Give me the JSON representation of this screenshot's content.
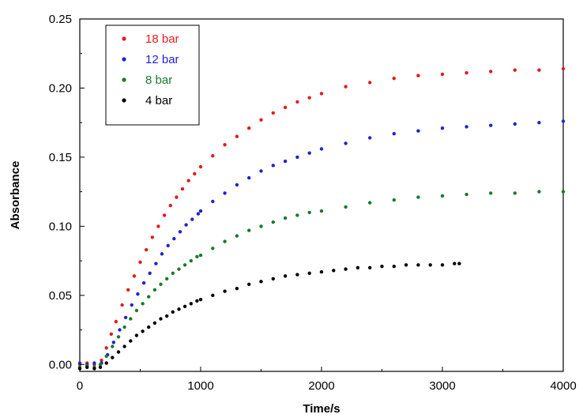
{
  "chart_data": {
    "type": "scatter",
    "title": "",
    "xlabel": "Time/s",
    "ylabel": "Absorbance",
    "xlim": [
      0,
      4000
    ],
    "ylim": [
      -0.005,
      0.25
    ],
    "x_ticks": [
      0,
      1000,
      2000,
      3000,
      4000
    ],
    "x_tick_labels": [
      "0",
      "1000",
      "2000",
      "3000",
      "4000"
    ],
    "y_ticks": [
      0.0,
      0.05,
      0.1,
      0.15,
      0.2,
      0.25
    ],
    "y_tick_labels": [
      "0.00",
      "0.05",
      "0.10",
      "0.15",
      "0.20",
      "0.25"
    ],
    "grid": false,
    "legend_position": "top-left",
    "series": [
      {
        "name": "18 bar",
        "color": "#e41a1c",
        "points": [
          [
            0,
            0.0
          ],
          [
            60,
            0.001
          ],
          [
            120,
            0.0
          ],
          [
            180,
            0.003
          ],
          [
            220,
            0.012
          ],
          [
            260,
            0.022
          ],
          [
            300,
            0.031
          ],
          [
            350,
            0.043
          ],
          [
            400,
            0.054
          ],
          [
            450,
            0.064
          ],
          [
            500,
            0.074
          ],
          [
            550,
            0.083
          ],
          [
            600,
            0.092
          ],
          [
            650,
            0.1
          ],
          [
            700,
            0.108
          ],
          [
            750,
            0.115
          ],
          [
            800,
            0.121
          ],
          [
            850,
            0.127
          ],
          [
            900,
            0.133
          ],
          [
            950,
            0.138
          ],
          [
            1000,
            0.143
          ],
          [
            1100,
            0.151
          ],
          [
            1200,
            0.159
          ],
          [
            1300,
            0.165
          ],
          [
            1400,
            0.171
          ],
          [
            1500,
            0.177
          ],
          [
            1600,
            0.182
          ],
          [
            1700,
            0.186
          ],
          [
            1800,
            0.19
          ],
          [
            1900,
            0.193
          ],
          [
            2000,
            0.196
          ],
          [
            2200,
            0.201
          ],
          [
            2400,
            0.204
          ],
          [
            2600,
            0.207
          ],
          [
            2800,
            0.209
          ],
          [
            3000,
            0.21
          ],
          [
            3200,
            0.211
          ],
          [
            3400,
            0.212
          ],
          [
            3600,
            0.213
          ],
          [
            3800,
            0.213
          ],
          [
            4000,
            0.214
          ]
        ]
      },
      {
        "name": "12 bar",
        "color": "#1f22d2",
        "points": [
          [
            0,
            0.001
          ],
          [
            60,
            0.0
          ],
          [
            120,
            0.001
          ],
          [
            180,
            0.001
          ],
          [
            230,
            0.007
          ],
          [
            280,
            0.016
          ],
          [
            330,
            0.025
          ],
          [
            380,
            0.034
          ],
          [
            430,
            0.043
          ],
          [
            480,
            0.051
          ],
          [
            530,
            0.059
          ],
          [
            580,
            0.066
          ],
          [
            630,
            0.073
          ],
          [
            680,
            0.08
          ],
          [
            730,
            0.086
          ],
          [
            780,
            0.091
          ],
          [
            830,
            0.096
          ],
          [
            880,
            0.101
          ],
          [
            930,
            0.105
          ],
          [
            980,
            0.109
          ],
          [
            1000,
            0.111
          ],
          [
            1100,
            0.118
          ],
          [
            1200,
            0.124
          ],
          [
            1300,
            0.13
          ],
          [
            1400,
            0.135
          ],
          [
            1500,
            0.14
          ],
          [
            1600,
            0.144
          ],
          [
            1700,
            0.147
          ],
          [
            1800,
            0.15
          ],
          [
            1900,
            0.153
          ],
          [
            2000,
            0.156
          ],
          [
            2200,
            0.16
          ],
          [
            2400,
            0.164
          ],
          [
            2600,
            0.167
          ],
          [
            2800,
            0.169
          ],
          [
            3000,
            0.171
          ],
          [
            3200,
            0.172
          ],
          [
            3400,
            0.173
          ],
          [
            3600,
            0.174
          ],
          [
            3800,
            0.175
          ],
          [
            4000,
            0.176
          ]
        ]
      },
      {
        "name": "8 bar",
        "color": "#1b7a2a",
        "points": [
          [
            0,
            -0.002
          ],
          [
            60,
            -0.001
          ],
          [
            120,
            -0.002
          ],
          [
            170,
            0.0
          ],
          [
            220,
            0.006
          ],
          [
            270,
            0.013
          ],
          [
            320,
            0.02
          ],
          [
            370,
            0.027
          ],
          [
            420,
            0.033
          ],
          [
            470,
            0.039
          ],
          [
            520,
            0.044
          ],
          [
            570,
            0.049
          ],
          [
            620,
            0.054
          ],
          [
            670,
            0.058
          ],
          [
            720,
            0.062
          ],
          [
            770,
            0.066
          ],
          [
            820,
            0.069
          ],
          [
            870,
            0.072
          ],
          [
            920,
            0.075
          ],
          [
            970,
            0.078
          ],
          [
            1000,
            0.079
          ],
          [
            1100,
            0.084
          ],
          [
            1200,
            0.089
          ],
          [
            1300,
            0.093
          ],
          [
            1400,
            0.097
          ],
          [
            1500,
            0.1
          ],
          [
            1600,
            0.103
          ],
          [
            1700,
            0.106
          ],
          [
            1800,
            0.108
          ],
          [
            1900,
            0.11
          ],
          [
            2000,
            0.111
          ],
          [
            2200,
            0.114
          ],
          [
            2400,
            0.117
          ],
          [
            2600,
            0.119
          ],
          [
            2800,
            0.121
          ],
          [
            3000,
            0.122
          ],
          [
            3200,
            0.123
          ],
          [
            3400,
            0.124
          ],
          [
            3600,
            0.124
          ],
          [
            3800,
            0.125
          ],
          [
            4000,
            0.125
          ]
        ]
      },
      {
        "name": "4 bar",
        "color": "#000000",
        "points": [
          [
            0,
            -0.003
          ],
          [
            60,
            -0.002
          ],
          [
            120,
            -0.003
          ],
          [
            170,
            -0.002
          ],
          [
            220,
            0.001
          ],
          [
            270,
            0.005
          ],
          [
            320,
            0.009
          ],
          [
            370,
            0.013
          ],
          [
            420,
            0.017
          ],
          [
            470,
            0.021
          ],
          [
            520,
            0.024
          ],
          [
            570,
            0.027
          ],
          [
            620,
            0.03
          ],
          [
            670,
            0.033
          ],
          [
            720,
            0.035
          ],
          [
            770,
            0.038
          ],
          [
            820,
            0.04
          ],
          [
            870,
            0.042
          ],
          [
            920,
            0.044
          ],
          [
            970,
            0.046
          ],
          [
            1000,
            0.047
          ],
          [
            1100,
            0.05
          ],
          [
            1200,
            0.053
          ],
          [
            1300,
            0.055
          ],
          [
            1400,
            0.058
          ],
          [
            1500,
            0.06
          ],
          [
            1600,
            0.062
          ],
          [
            1700,
            0.064
          ],
          [
            1800,
            0.065
          ],
          [
            1900,
            0.066
          ],
          [
            2000,
            0.067
          ],
          [
            2100,
            0.068
          ],
          [
            2200,
            0.069
          ],
          [
            2300,
            0.07
          ],
          [
            2400,
            0.07
          ],
          [
            2500,
            0.071
          ],
          [
            2600,
            0.071
          ],
          [
            2700,
            0.072
          ],
          [
            2800,
            0.072
          ],
          [
            2900,
            0.072
          ],
          [
            3000,
            0.072
          ],
          [
            3100,
            0.073
          ],
          [
            3140,
            0.073
          ]
        ]
      }
    ]
  }
}
